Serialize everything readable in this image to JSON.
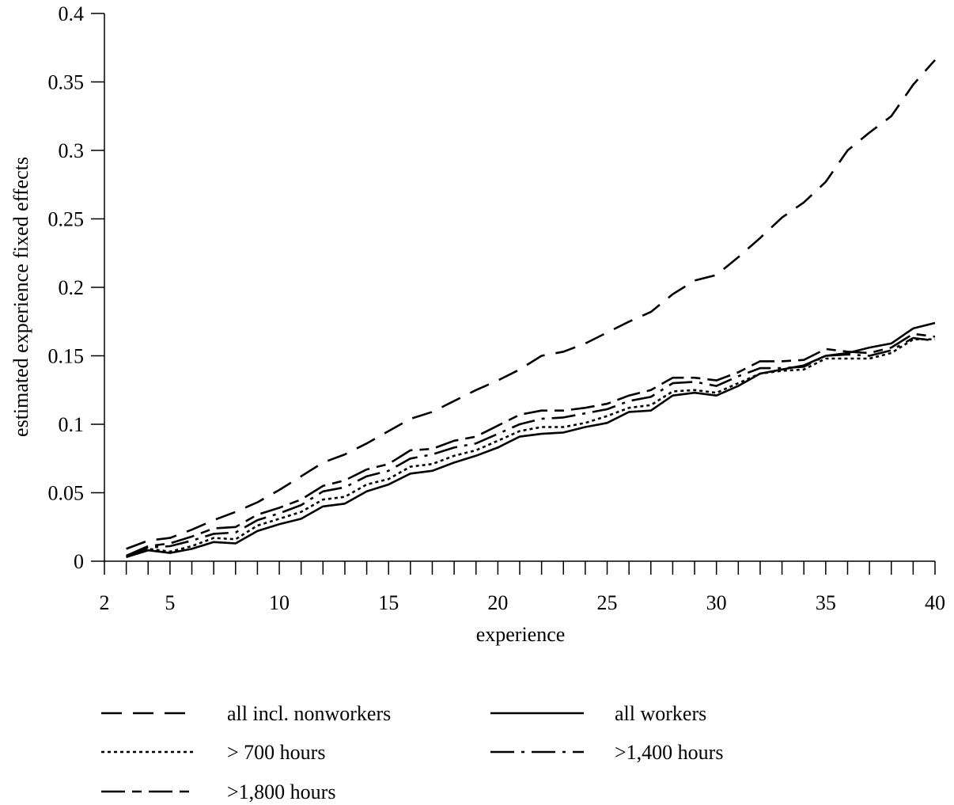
{
  "chart_data": {
    "type": "line",
    "title": "",
    "xlabel": "experience",
    "ylabel": "estimated experience fixed effects",
    "xlim": [
      2,
      40
    ],
    "ylim": [
      0,
      0.4
    ],
    "xticks": [
      2,
      5,
      10,
      15,
      20,
      25,
      30,
      35,
      40
    ],
    "xtick_labels": [
      "2",
      "5",
      "10",
      "15",
      "20",
      "25",
      "30",
      "35",
      "40"
    ],
    "yticks": [
      0,
      0.05,
      0.1,
      0.15,
      0.2,
      0.25,
      0.3,
      0.35,
      0.4
    ],
    "ytick_labels": [
      "0",
      "0.05",
      "0.1",
      "0.15",
      "0.2",
      "0.25",
      "0.3",
      "0.35",
      "0.4"
    ],
    "grid": false,
    "legend_position": "bottom",
    "x": [
      3,
      4,
      5,
      6,
      7,
      8,
      9,
      10,
      11,
      12,
      13,
      14,
      15,
      16,
      17,
      18,
      19,
      20,
      21,
      22,
      23,
      24,
      25,
      26,
      27,
      28,
      29,
      30,
      31,
      32,
      33,
      34,
      35,
      36,
      37,
      38,
      39,
      40
    ],
    "series": [
      {
        "name": "all incl. nonworkers",
        "dash": "long-dash",
        "values": [
          0.009,
          0.015,
          0.017,
          0.023,
          0.03,
          0.036,
          0.043,
          0.052,
          0.062,
          0.072,
          0.078,
          0.086,
          0.095,
          0.104,
          0.109,
          0.117,
          0.125,
          0.132,
          0.14,
          0.15,
          0.153,
          0.159,
          0.167,
          0.175,
          0.182,
          0.195,
          0.205,
          0.209,
          0.222,
          0.236,
          0.251,
          0.262,
          0.277,
          0.3,
          0.313,
          0.325,
          0.348,
          0.366
        ]
      },
      {
        "name": "all workers",
        "dash": "solid",
        "values": [
          0.003,
          0.008,
          0.006,
          0.009,
          0.014,
          0.013,
          0.022,
          0.027,
          0.031,
          0.04,
          0.042,
          0.051,
          0.056,
          0.064,
          0.066,
          0.072,
          0.077,
          0.083,
          0.091,
          0.093,
          0.094,
          0.098,
          0.101,
          0.109,
          0.11,
          0.121,
          0.123,
          0.121,
          0.128,
          0.137,
          0.14,
          0.143,
          0.15,
          0.152,
          0.156,
          0.159,
          0.17,
          0.174
        ]
      },
      {
        "name": "> 700 hours",
        "dash": "dotted",
        "values": [
          0.003,
          0.009,
          0.007,
          0.011,
          0.017,
          0.016,
          0.026,
          0.031,
          0.036,
          0.045,
          0.047,
          0.056,
          0.06,
          0.069,
          0.071,
          0.077,
          0.081,
          0.088,
          0.095,
          0.098,
          0.098,
          0.101,
          0.106,
          0.112,
          0.114,
          0.124,
          0.125,
          0.123,
          0.13,
          0.137,
          0.139,
          0.14,
          0.148,
          0.148,
          0.148,
          0.152,
          0.162,
          0.162
        ]
      },
      {
        "name": ">1,400 hours",
        "dash": "dash-dot",
        "values": [
          0.003,
          0.01,
          0.011,
          0.015,
          0.02,
          0.021,
          0.03,
          0.035,
          0.041,
          0.051,
          0.054,
          0.062,
          0.066,
          0.075,
          0.078,
          0.083,
          0.086,
          0.093,
          0.1,
          0.104,
          0.105,
          0.108,
          0.111,
          0.117,
          0.12,
          0.13,
          0.131,
          0.128,
          0.135,
          0.141,
          0.141,
          0.142,
          0.15,
          0.151,
          0.15,
          0.154,
          0.163,
          0.161
        ]
      },
      {
        "name": ">1,800 hours",
        "dash": "long-short",
        "values": [
          0.004,
          0.011,
          0.013,
          0.018,
          0.024,
          0.025,
          0.034,
          0.039,
          0.045,
          0.055,
          0.059,
          0.067,
          0.071,
          0.081,
          0.082,
          0.088,
          0.091,
          0.099,
          0.107,
          0.11,
          0.11,
          0.112,
          0.115,
          0.121,
          0.125,
          0.134,
          0.134,
          0.132,
          0.138,
          0.146,
          0.146,
          0.147,
          0.155,
          0.153,
          0.152,
          0.156,
          0.166,
          0.164
        ]
      }
    ]
  }
}
